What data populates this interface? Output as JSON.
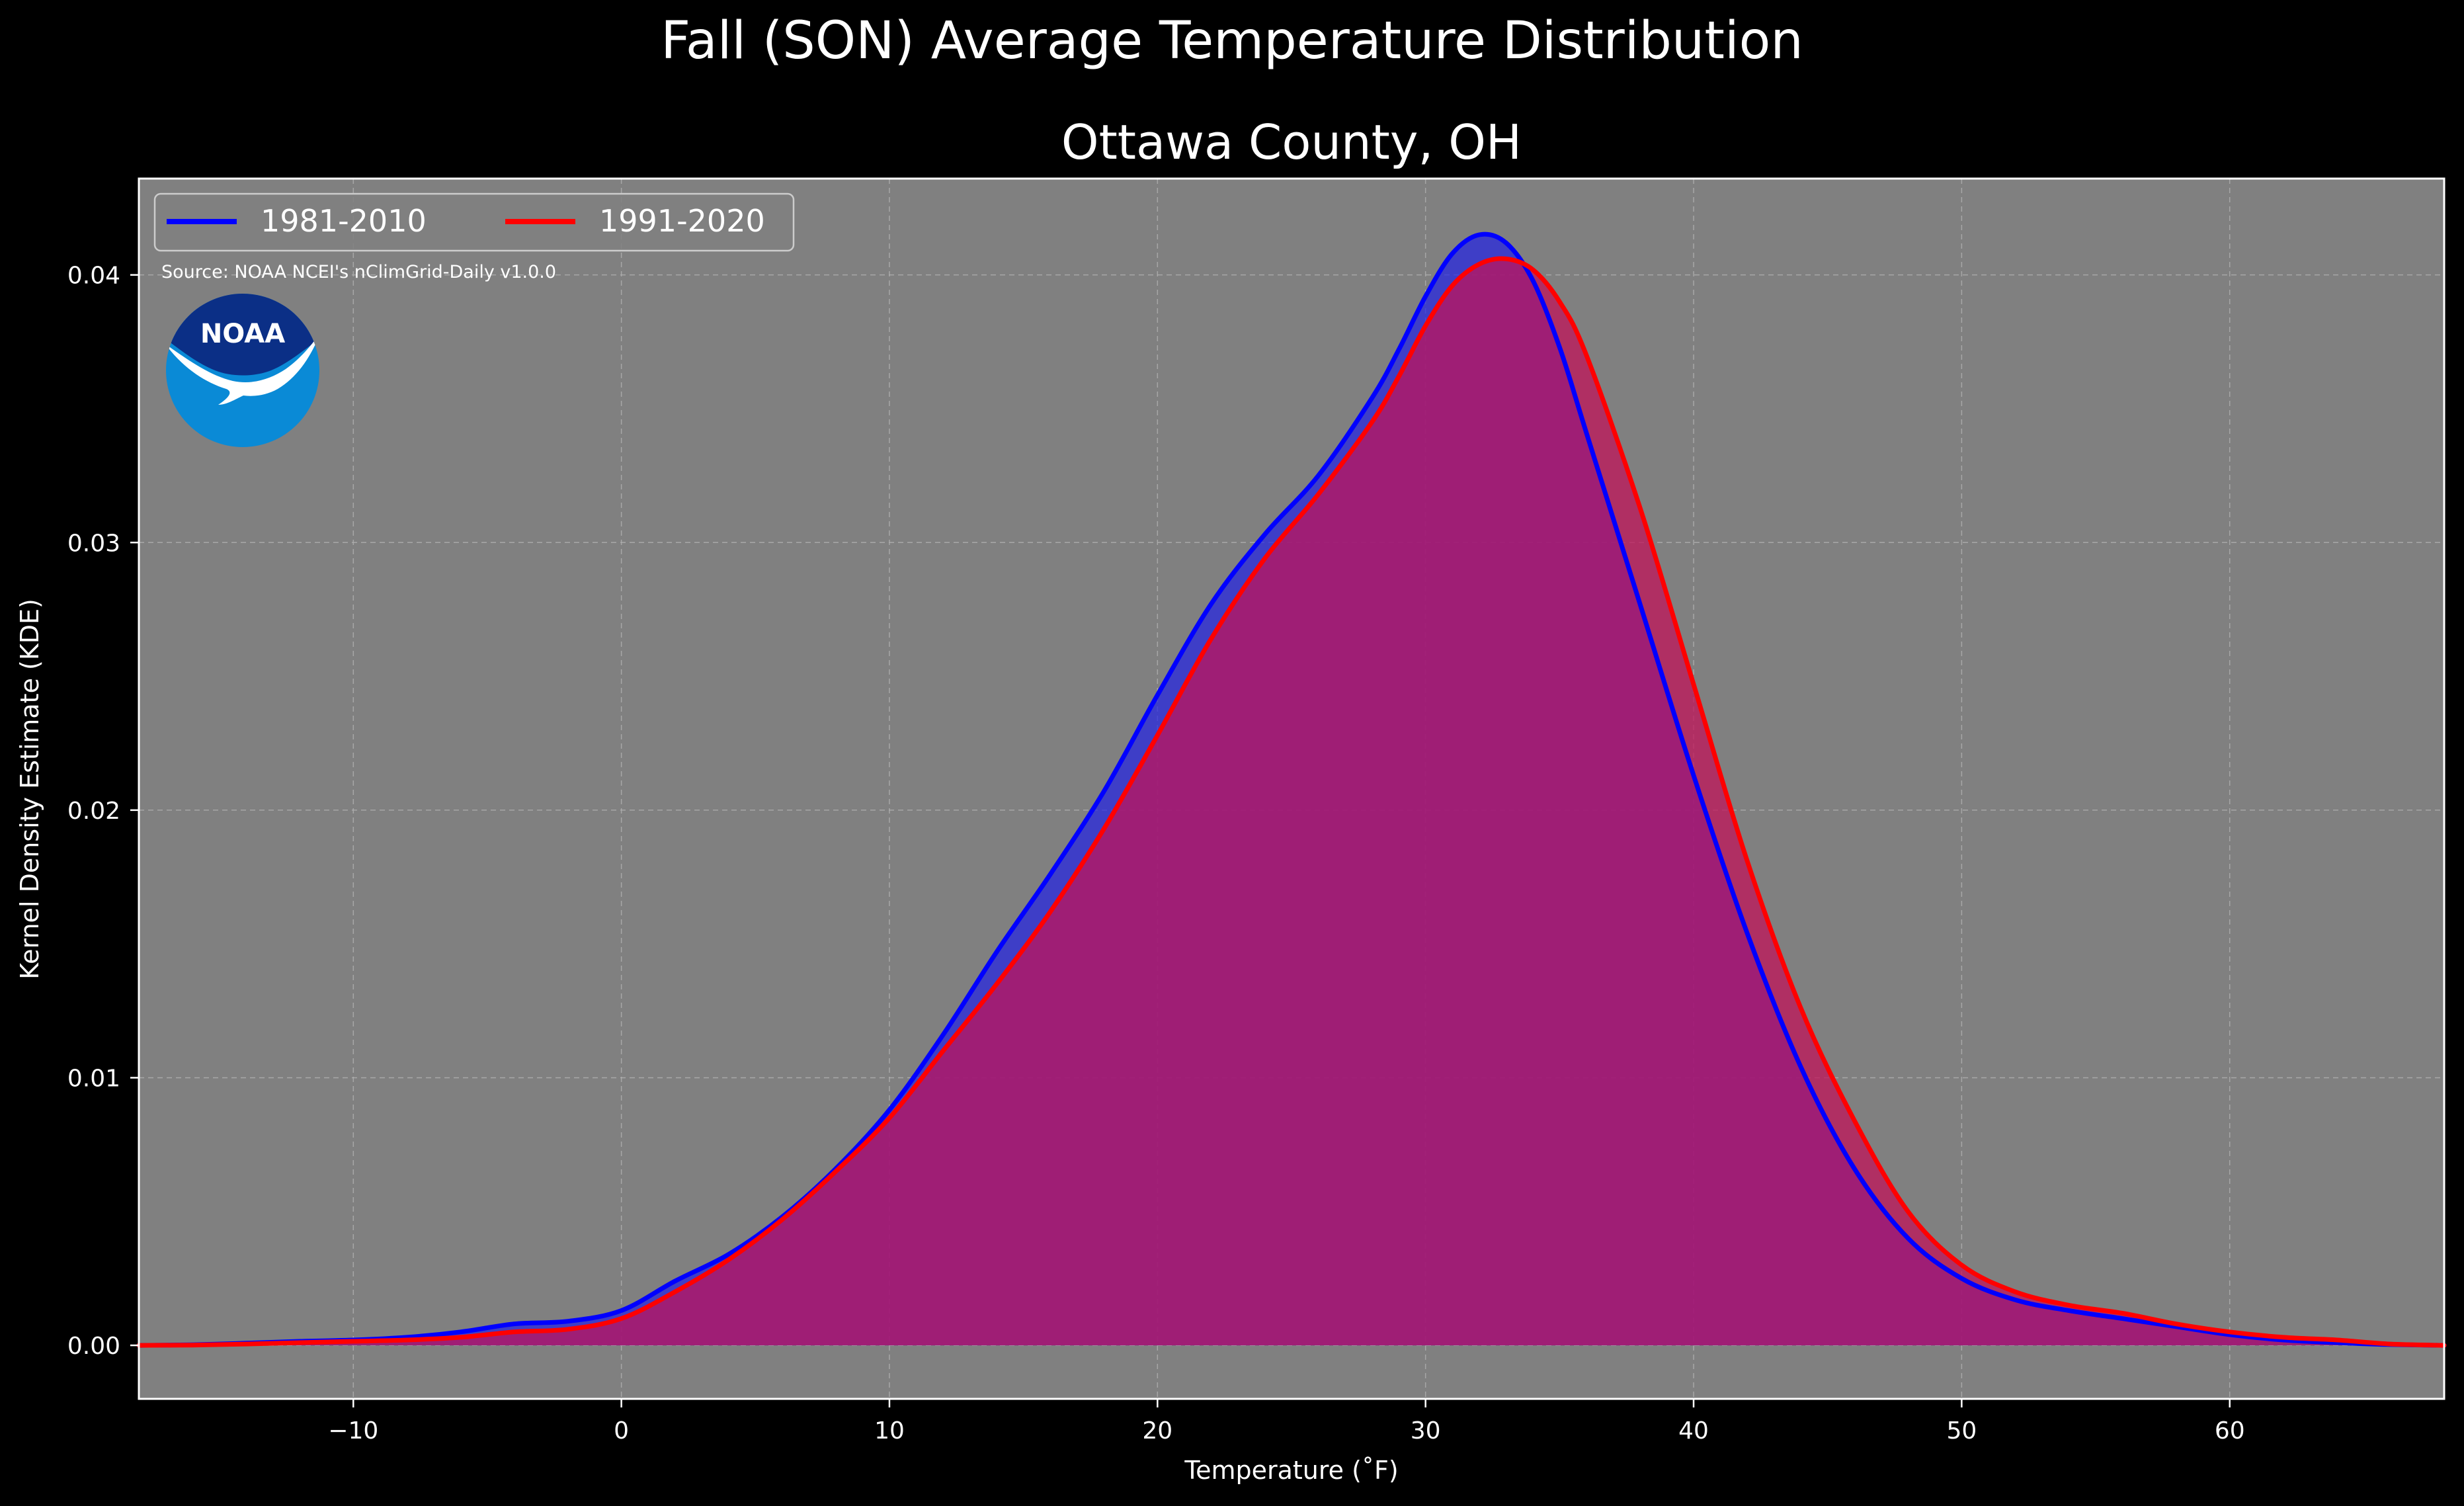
{
  "figure": {
    "suptitle": "Fall (SON) Average Temperature Distribution",
    "source_note": "Source: NOAA NCEI's nClimGrid-Daily v1.0.0",
    "logo_text": "NOAA"
  },
  "chart_data": {
    "type": "area",
    "title": "Ottawa County, OH",
    "xlabel": "Temperature (˚F)",
    "ylabel": "Kernel Density Estimate (KDE)",
    "xlim": [
      -18,
      68
    ],
    "ylim": [
      -0.002,
      0.0436
    ],
    "xticks": [
      -10,
      0,
      10,
      20,
      30,
      40,
      50,
      60
    ],
    "xtick_labels": [
      "−10",
      "0",
      "10",
      "20",
      "30",
      "40",
      "50",
      "60"
    ],
    "yticks": [
      0.0,
      0.01,
      0.02,
      0.03,
      0.04
    ],
    "ytick_labels": [
      "0.00",
      "0.01",
      "0.02",
      "0.03",
      "0.04"
    ],
    "grid": true,
    "legend": {
      "position": "top-left",
      "columns": 2
    },
    "colors": {
      "background": "#000000",
      "axes_face": "#808080",
      "text": "#ffffff",
      "grid": "#b0b0b0"
    },
    "series": [
      {
        "name": "1981-2010",
        "color": "#0000ff",
        "fill_color": "#2222e6",
        "fill_opacity": 0.7,
        "x": [
          -18,
          -16,
          -14,
          -12,
          -10,
          -8,
          -6,
          -4,
          -2,
          0,
          2,
          4,
          6,
          8,
          10,
          12,
          14,
          16,
          18,
          20,
          22,
          24,
          26,
          28,
          29,
          30,
          31,
          32,
          33,
          34,
          35,
          36,
          38,
          40,
          42,
          44,
          46,
          48,
          50,
          52,
          54,
          56,
          58,
          60,
          62,
          64,
          66,
          68
        ],
        "y": [
          0.0,
          2e-05,
          8e-05,
          0.00015,
          0.0002,
          0.0003,
          0.0005,
          0.0008,
          0.0009,
          0.0013,
          0.0024,
          0.0034,
          0.0048,
          0.0066,
          0.0088,
          0.0116,
          0.0147,
          0.0176,
          0.0207,
          0.0243,
          0.0277,
          0.0303,
          0.0325,
          0.0354,
          0.0372,
          0.0392,
          0.0408,
          0.0415,
          0.0412,
          0.0398,
          0.0373,
          0.0341,
          0.0277,
          0.0213,
          0.0154,
          0.0104,
          0.0066,
          0.004,
          0.0025,
          0.0017,
          0.0013,
          0.001,
          0.0007,
          0.0004,
          0.0002,
          0.0001,
          3e-05,
          0.0
        ]
      },
      {
        "name": "1991-2020",
        "color": "#ff0000",
        "fill_color": "#c0145a",
        "fill_opacity": 0.75,
        "x": [
          -18,
          -16,
          -14,
          -12,
          -10,
          -8,
          -6,
          -4,
          -2,
          0,
          2,
          4,
          6,
          8,
          10,
          12,
          14,
          16,
          18,
          20,
          22,
          24,
          26,
          28,
          29,
          30,
          31,
          32,
          33,
          34,
          35,
          36,
          38,
          40,
          42,
          44,
          46,
          48,
          50,
          52,
          54,
          56,
          58,
          60,
          62,
          64,
          66,
          68
        ],
        "y": [
          0.0,
          1e-05,
          5e-05,
          0.0001,
          0.00015,
          0.0002,
          0.0003,
          0.0005,
          0.0006,
          0.001,
          0.002,
          0.0032,
          0.0047,
          0.0065,
          0.0085,
          0.011,
          0.0135,
          0.0162,
          0.0193,
          0.0228,
          0.0264,
          0.0294,
          0.0318,
          0.0345,
          0.0362,
          0.0381,
          0.0396,
          0.0404,
          0.0406,
          0.0402,
          0.039,
          0.037,
          0.0313,
          0.0247,
          0.0181,
          0.0126,
          0.0084,
          0.005,
          0.003,
          0.002,
          0.0015,
          0.0012,
          0.0008,
          0.0005,
          0.0003,
          0.0002,
          5e-05,
          0.0
        ]
      }
    ]
  }
}
